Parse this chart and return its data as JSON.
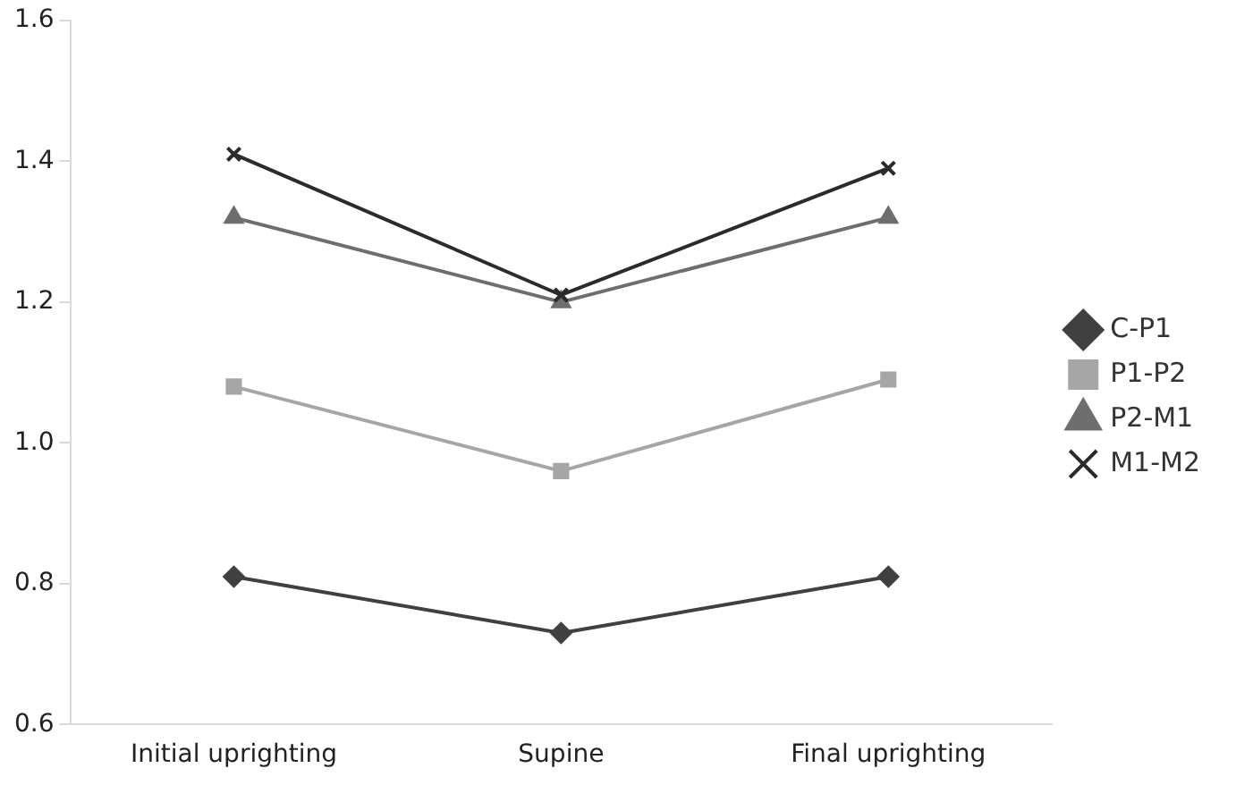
{
  "chart_data": {
    "type": "line",
    "categories": [
      "Initial uprighting",
      "Supine",
      "Final uprighting"
    ],
    "series": [
      {
        "name": "C-P1",
        "color": "#404040",
        "marker": "diamond",
        "values": [
          0.81,
          0.73,
          0.81
        ]
      },
      {
        "name": "P1-P2",
        "color": "#a6a6a6",
        "marker": "square",
        "values": [
          1.08,
          0.96,
          1.09
        ]
      },
      {
        "name": "P2-M1",
        "color": "#6e6e6e",
        "marker": "triangle",
        "values": [
          1.32,
          1.2,
          1.32
        ]
      },
      {
        "name": "M1-M2",
        "color": "#2b2b2b",
        "marker": "cross",
        "values": [
          1.41,
          1.21,
          1.39
        ]
      }
    ],
    "ylim": [
      0.6,
      1.6
    ],
    "yticks": [
      {
        "value": 0.6,
        "label": "0.6"
      },
      {
        "value": 0.8,
        "label": "0.8"
      },
      {
        "value": 1.0,
        "label": "1.0"
      },
      {
        "value": 1.2,
        "label": "1.2"
      },
      {
        "value": 1.4,
        "label": "1.4"
      },
      {
        "value": 1.6,
        "label": "1.6"
      }
    ],
    "grid": false,
    "legend": "right",
    "line_style": "solid"
  }
}
